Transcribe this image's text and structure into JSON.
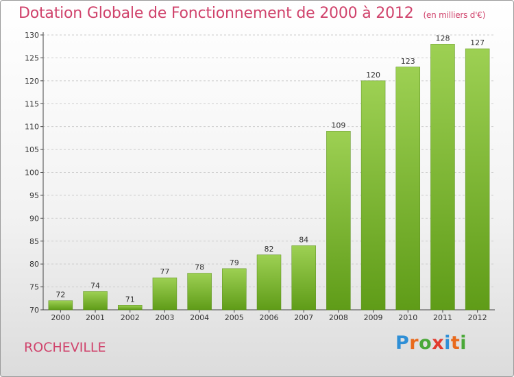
{
  "title": "Dotation Globale de Fonctionnement de 2000 à 2012",
  "unit_note": "(en milliers d'€)",
  "place": "ROCHEVILLE",
  "logo": {
    "text": "Proxiti",
    "letter_colors": [
      "#2f8fd6",
      "#e96a1c",
      "#4aa838",
      "#e23b2e",
      "#2f8fd6",
      "#e96a1c",
      "#4aa838"
    ]
  },
  "colors": {
    "bar_top": "#9dd053",
    "bar_bottom": "#5f9c18",
    "title": "#d0436c",
    "axis_text": "#333333",
    "grid": "#cccccc"
  },
  "chart_data": {
    "type": "bar",
    "title": "Dotation Globale de Fonctionnement de 2000 à 2012",
    "xlabel": "",
    "ylabel": "",
    "categories": [
      "2000",
      "2001",
      "2002",
      "2003",
      "2004",
      "2005",
      "2006",
      "2007",
      "2008",
      "2009",
      "2010",
      "2011",
      "2012"
    ],
    "values": [
      72,
      74,
      71,
      77,
      78,
      79,
      82,
      84,
      109,
      120,
      123,
      128,
      127
    ],
    "data_labels": [
      "72",
      "74",
      "71",
      "77",
      "78",
      "79",
      "82",
      "84",
      "109",
      "120",
      "123",
      "128",
      "127"
    ],
    "y_ticks": [
      70,
      75,
      80,
      85,
      90,
      95,
      100,
      105,
      110,
      115,
      120,
      125,
      130
    ],
    "ylim": [
      70,
      130
    ],
    "grid": true,
    "grid_style": "dashed horizontal"
  }
}
